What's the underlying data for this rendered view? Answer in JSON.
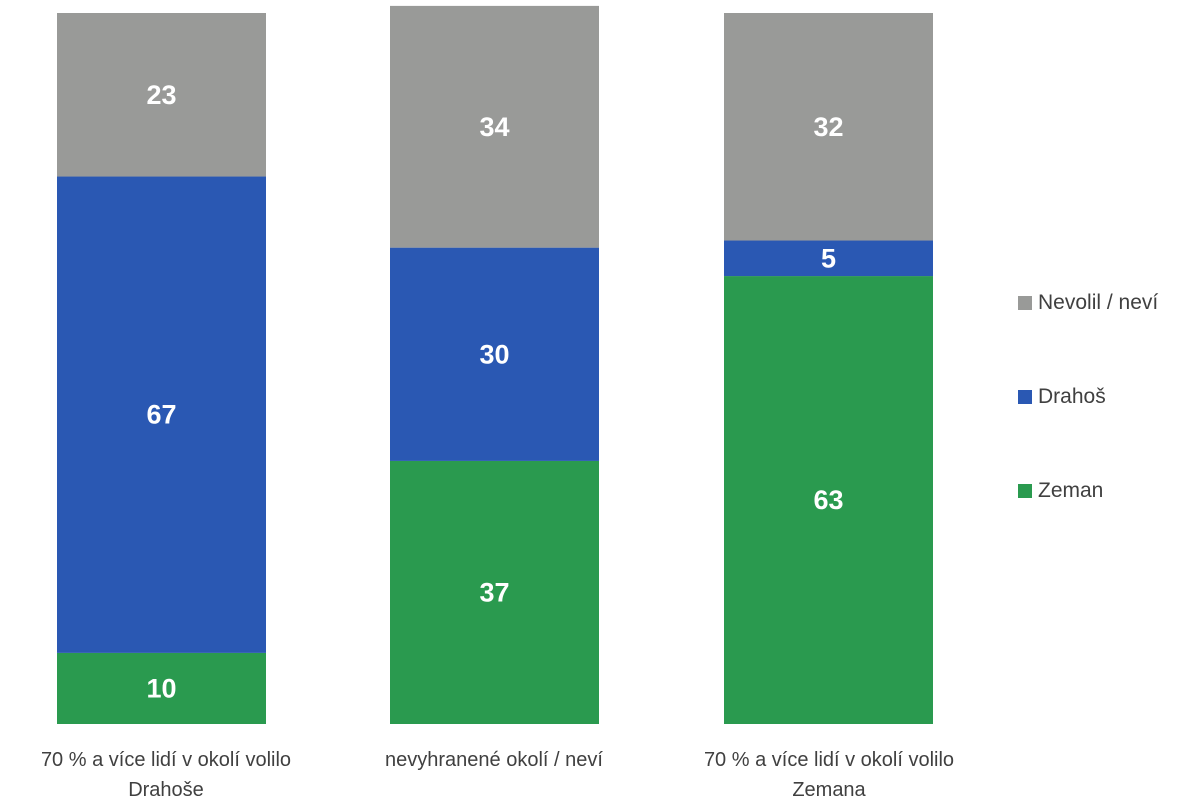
{
  "chart_data": {
    "type": "bar",
    "stacked": true,
    "percent_stacked": true,
    "categories": [
      "70 % a více lidí v okolí volilo Drahoše",
      "nevyhranené okolí / neví",
      "70 % a více lidí v okolí volilo Zemana"
    ],
    "series": [
      {
        "name": "Zeman",
        "values": [
          10,
          37,
          63
        ],
        "color": "#2a9a4f"
      },
      {
        "name": "Drahoš",
        "values": [
          67,
          30,
          5
        ],
        "color": "#2a58b3"
      },
      {
        "name": "Nevolil / neví",
        "values": [
          23,
          34,
          32
        ],
        "color": "#999a98"
      }
    ],
    "ylim": [
      0,
      100
    ],
    "grid": false,
    "legend_position": "right",
    "data_labels": true
  },
  "legend": {
    "items": [
      {
        "label": "Nevolil / neví",
        "color": "#999a98"
      },
      {
        "label": "Drahoš",
        "color": "#2a58b3"
      },
      {
        "label": "Zeman",
        "color": "#2a9a4f"
      }
    ]
  },
  "categories_display": [
    {
      "line1": "70 % a více lidí v okolí volilo",
      "line2": "Drahoše"
    },
    {
      "line1": "nevyhranené okolí / neví",
      "line2": ""
    },
    {
      "line1": "70 % a více lidí v okolí volilo",
      "line2": "Zemana"
    }
  ]
}
